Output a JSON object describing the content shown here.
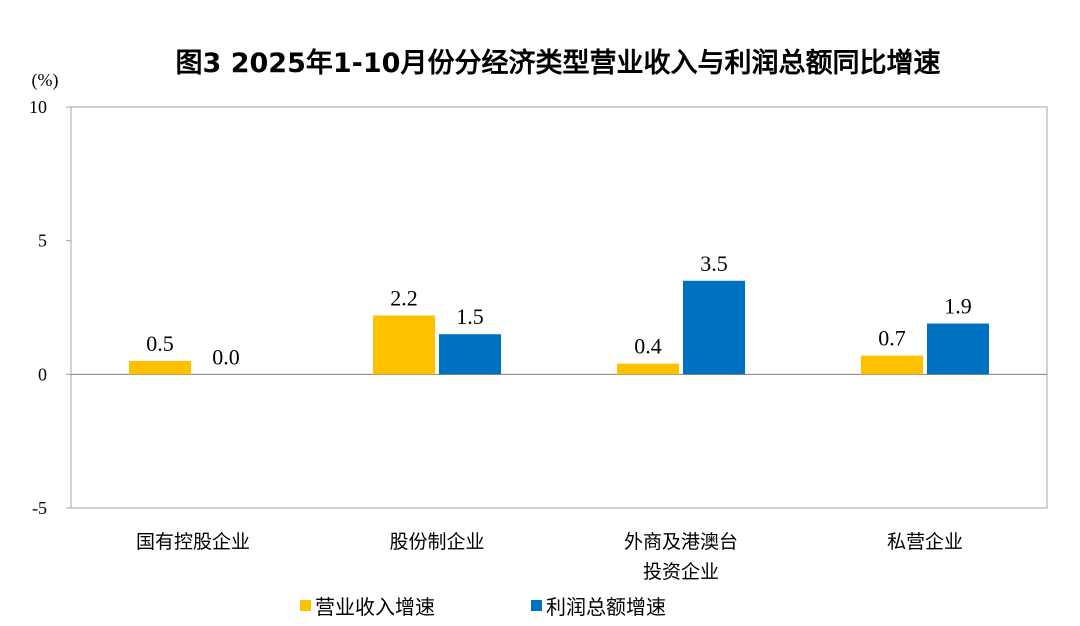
{
  "chart_data": {
    "type": "bar",
    "title": "图3 2025年1-10月份分经济类型营业收入与利润总额同比增速",
    "ylabel": "(%)",
    "xlabel": "",
    "ylim": [
      -5,
      10
    ],
    "yticks": [
      "10",
      "5",
      "0",
      "-5"
    ],
    "ytick_values": [
      10,
      5,
      0,
      -5
    ],
    "grid": false,
    "legend_position": "bottom",
    "categories": [
      [
        "国有控股企业"
      ],
      [
        "股份制企业"
      ],
      [
        "外商及港澳台",
        "投资企业"
      ],
      [
        "私营企业"
      ]
    ],
    "series": [
      {
        "name": "营业收入增速",
        "color": "#FFC000",
        "values": [
          0.5,
          2.2,
          0.4,
          0.7
        ],
        "labels": [
          "0.5",
          "2.2",
          "0.4",
          "0.7"
        ]
      },
      {
        "name": "利润总额增速",
        "color": "#0070C0",
        "values": [
          0.0,
          1.5,
          3.5,
          1.9
        ],
        "labels": [
          "0.0",
          "1.5",
          "3.5",
          "1.9"
        ]
      }
    ]
  }
}
